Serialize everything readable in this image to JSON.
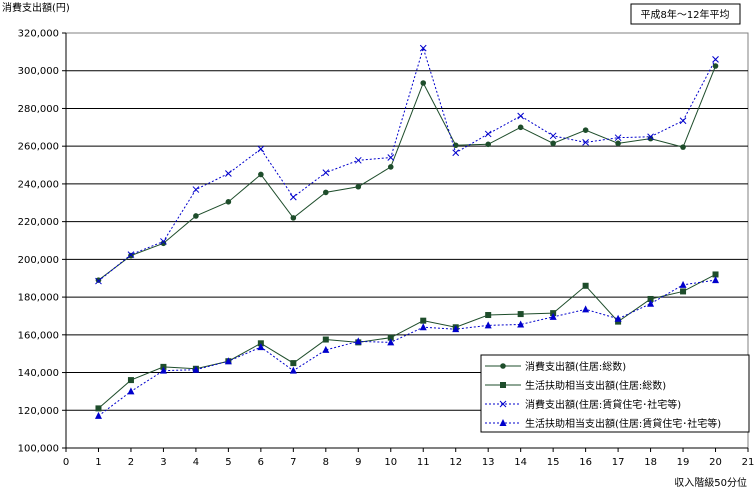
{
  "chart_data": {
    "type": "line",
    "ylabel": "消費支出額(円)",
    "xlabel": "収入階級50分位",
    "note": "平成8年～12年平均",
    "xlim": [
      0,
      21
    ],
    "ylim": [
      100000,
      320000
    ],
    "x_ticks": [
      "0",
      "1",
      "2",
      "3",
      "4",
      "5",
      "6",
      "7",
      "8",
      "9",
      "10",
      "11",
      "12",
      "13",
      "14",
      "15",
      "16",
      "17",
      "18",
      "19",
      "20",
      "21"
    ],
    "y_ticks": [
      "100,000",
      "120,000",
      "140,000",
      "160,000",
      "180,000",
      "200,000",
      "220,000",
      "240,000",
      "260,000",
      "280,000",
      "300,000",
      "320,000"
    ],
    "y_tick_values": [
      100000,
      120000,
      140000,
      160000,
      180000,
      200000,
      220000,
      240000,
      260000,
      280000,
      300000,
      320000
    ],
    "grid": "horizontal",
    "legend_position": "bottom-right",
    "x": [
      1,
      2,
      3,
      4,
      5,
      6,
      7,
      8,
      9,
      10,
      11,
      12,
      13,
      14,
      15,
      16,
      17,
      18,
      19,
      20
    ],
    "series": [
      {
        "name": "消費支出額(住居:総数)",
        "color": "#1e4d2b",
        "line_style": "solid",
        "marker": "circle",
        "values": [
          189000,
          202000,
          208500,
          223000,
          230500,
          245000,
          222000,
          235500,
          238500,
          249000,
          293500,
          260500,
          261000,
          270000,
          261500,
          268500,
          261500,
          264000,
          259500,
          302500
        ]
      },
      {
        "name": "生活扶助相当支出額(住居:総数)",
        "color": "#1e4d2b",
        "line_style": "solid",
        "marker": "square",
        "values": [
          121000,
          136000,
          143000,
          142000,
          146000,
          155500,
          145000,
          157500,
          156000,
          158500,
          167500,
          164000,
          170500,
          171000,
          171500,
          186000,
          167000,
          179000,
          183000,
          192000
        ]
      },
      {
        "name": "消費支出額(住居:賃貸住宅･社宅等)",
        "color": "#0000cc",
        "line_style": "dotted",
        "marker": "x",
        "values": [
          188500,
          202500,
          209500,
          237000,
          245500,
          258500,
          233000,
          246000,
          252500,
          254000,
          312000,
          256500,
          266500,
          276000,
          265500,
          262000,
          264500,
          265000,
          273500,
          306000
        ]
      },
      {
        "name": "生活扶助相当支出額(住居:賃貸住宅･社宅等)",
        "color": "#0000cc",
        "line_style": "dotted",
        "marker": "triangle",
        "values": [
          117000,
          130000,
          141000,
          141500,
          146000,
          153500,
          141000,
          152000,
          156500,
          156000,
          164000,
          163000,
          165000,
          165500,
          169500,
          173500,
          168500,
          176500,
          186500,
          189000
        ]
      }
    ]
  }
}
